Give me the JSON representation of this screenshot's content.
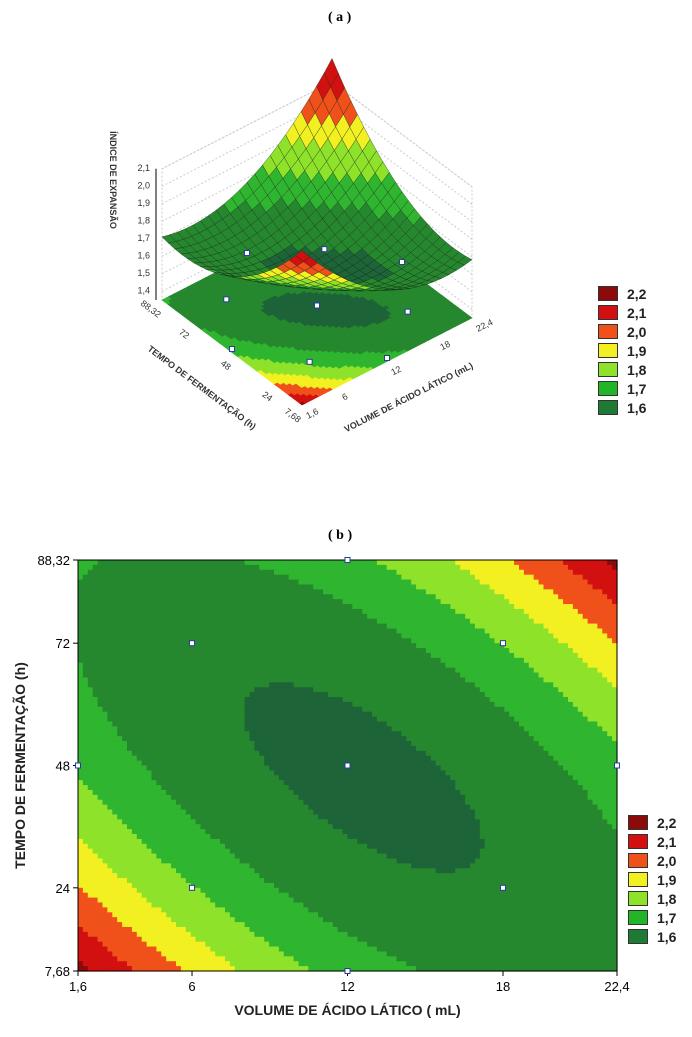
{
  "chart_data": [
    {
      "type": "surface3d",
      "title": "( a )",
      "xlabel": "VOLUME DE ÁCIDO LÁTICO (mL)",
      "ylabel": "TEMPO DE FERMENTAÇÃO (h)",
      "zlabel": "ÍNDICE DE EXPANSÃO",
      "xticks": [
        "1,6",
        "6",
        "12",
        "18",
        "22,4"
      ],
      "yticks": [
        "7,68",
        "24",
        "48",
        "72",
        "88,32"
      ],
      "zticks": [
        "1,4",
        "1,5",
        "1,6",
        "1,7",
        "1,8",
        "1,9",
        "2,0",
        "2,1"
      ],
      "xlim": [
        1.6,
        22.4
      ],
      "ylim": [
        7.68,
        88.32
      ],
      "zlim": [
        1.35,
        2.1
      ]
    },
    {
      "type": "contour",
      "title": "( b )",
      "xlabel": "VOLUME DE ÁCIDO LÁTICO ( mL)",
      "ylabel": "TEMPO DE FERMENTAÇÃO (h)",
      "xticks": [
        1.6,
        6,
        12,
        18,
        22.4
      ],
      "xtick_labels": [
        "1,6",
        "6",
        "12",
        "18",
        "22,4"
      ],
      "yticks": [
        7.68,
        24,
        48,
        72,
        88.32
      ],
      "ytick_labels": [
        "7,68",
        "24",
        "48",
        "72",
        "88,32"
      ],
      "xlim": [
        1.6,
        22.4
      ],
      "ylim": [
        7.68,
        88.32
      ]
    }
  ],
  "model": {
    "x_center": 12,
    "x_step": 6,
    "y_center": 48,
    "y_step": 24,
    "b0": 1.58,
    "b_xx": 0.066,
    "b_yy": 0.066,
    "b_xy": 0.092,
    "x_shift": 0.1,
    "y_shift": -0.1
  },
  "design_points": [
    [
      1.6,
      48
    ],
    [
      22.4,
      48
    ],
    [
      12,
      7.68
    ],
    [
      12,
      88.32
    ],
    [
      6,
      24
    ],
    [
      6,
      72
    ],
    [
      18,
      24
    ],
    [
      18,
      72
    ],
    [
      12,
      48
    ]
  ],
  "legend": {
    "levels": [
      {
        "label": "2,2",
        "value": 2.2,
        "color": "#8b0a0a"
      },
      {
        "label": "2,1",
        "value": 2.1,
        "color": "#d21010"
      },
      {
        "label": "2,0",
        "value": 2.0,
        "color": "#f0501a"
      },
      {
        "label": "1,9",
        "value": 1.9,
        "color": "#f2f020"
      },
      {
        "label": "1,8",
        "value": 1.8,
        "color": "#8ee22a"
      },
      {
        "label": "1,7",
        "value": 1.7,
        "color": "#22b528"
      },
      {
        "label": "1,6",
        "value": 1.6,
        "color": "#1f7a33"
      }
    ]
  },
  "band_colors": {
    "below_1_6": "#1d6438",
    "1_6_to_1_7": "#26882e",
    "1_7_to_1_8": "#2fb52f",
    "1_8_to_1_9": "#8ee22a",
    "1_9_to_2_0": "#f2f020",
    "2_0_to_2_1": "#f0501a",
    "2_1_to_2_2": "#d21010",
    "above_2_2": "#8b0a0a"
  }
}
